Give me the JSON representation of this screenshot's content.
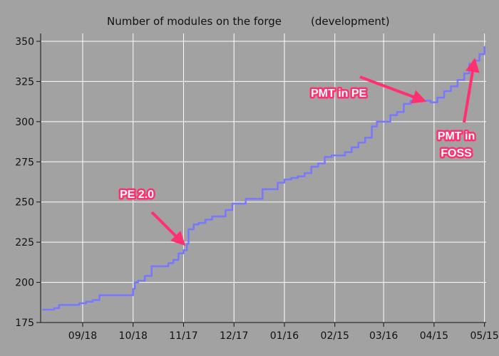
{
  "chart_data": {
    "type": "line",
    "title": "Number of modules on the forge",
    "subtitle": "(development)",
    "xlabel": "",
    "ylabel": "",
    "ylim": [
      175,
      350
    ],
    "y_ticks": [
      175,
      200,
      225,
      250,
      275,
      300,
      325,
      350
    ],
    "x_ticks": [
      "09/18",
      "10/18",
      "11/17",
      "12/17",
      "01/16",
      "02/15",
      "03/16",
      "04/15",
      "05/15"
    ],
    "grid": true,
    "legend": "none",
    "colors": {
      "background": "#a2a2a2",
      "grid": "#ffffff",
      "line": "#7777ff",
      "annotation": "#ff3070"
    },
    "series": [
      {
        "x": [
          "08/25",
          "08/28",
          "09/01",
          "09/04",
          "09/08",
          "09/12",
          "09/16",
          "09/20",
          "09/24",
          "09/28",
          "10/02",
          "10/06",
          "10/10",
          "10/14",
          "10/18",
          "10/19",
          "10/21",
          "10/25",
          "10/29",
          "11/02",
          "11/06",
          "11/08",
          "11/11",
          "11/14",
          "11/17",
          "11/19",
          "11/20",
          "11/23",
          "11/26",
          "11/30",
          "12/04",
          "12/08",
          "12/12",
          "12/16",
          "12/20",
          "12/24",
          "12/28",
          "01/03",
          "01/07",
          "01/12",
          "01/16",
          "01/20",
          "01/24",
          "01/28",
          "02/01",
          "02/05",
          "02/09",
          "02/13",
          "02/17",
          "02/21",
          "02/25",
          "03/01",
          "03/05",
          "03/09",
          "03/12",
          "03/16",
          "03/20",
          "03/24",
          "03/28",
          "04/01",
          "04/05",
          "04/09",
          "04/13",
          "04/17",
          "04/21",
          "04/25",
          "04/29",
          "05/03",
          "05/06",
          "05/09",
          "05/12",
          "05/15"
        ],
        "y": [
          183,
          183,
          184,
          186,
          186,
          186,
          187,
          188,
          189,
          192,
          192,
          192,
          192,
          192,
          196,
          200,
          201,
          204,
          210,
          210,
          210,
          212,
          214,
          218,
          220,
          224,
          233,
          236,
          237,
          239,
          241,
          241,
          245,
          249,
          249,
          252,
          252,
          258,
          258,
          262,
          264,
          265,
          266,
          268,
          272,
          274,
          278,
          279,
          279,
          281,
          284,
          287,
          290,
          297,
          300,
          300,
          304,
          306,
          311,
          313,
          313,
          313,
          312,
          315,
          319,
          322,
          326,
          330,
          336,
          338,
          342,
          347
        ]
      }
    ],
    "annotations": [
      {
        "text": "PE 2.0",
        "x": "11/17",
        "y": 224
      },
      {
        "text": "PMT in PE",
        "x": "04/09",
        "y": 313
      },
      {
        "text": "PMT in",
        "text2": "FOSS",
        "x": "05/09",
        "y": 338
      }
    ]
  }
}
